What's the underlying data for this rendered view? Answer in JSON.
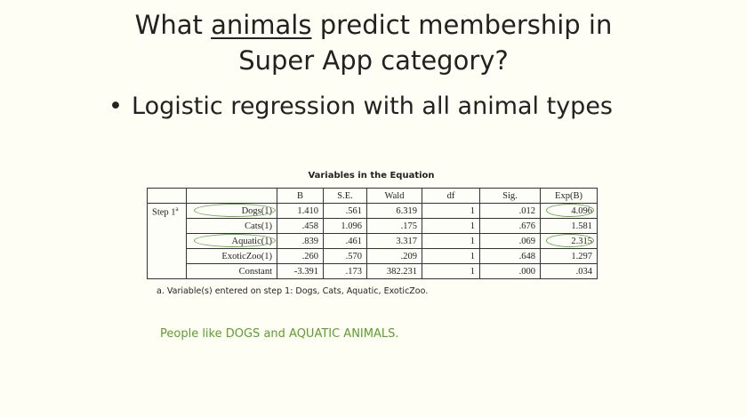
{
  "slide": {
    "title_part1": "What",
    "title_underlined": "animals",
    "title_part2": "predict membership in",
    "title_line2": "Super App category?",
    "bullet_marker": "•",
    "bullet_text": "Logistic regression with all animal types",
    "note": "People like DOGS and AQUATIC ANIMALS."
  },
  "table": {
    "caption": "Variables in the Equation",
    "step_label": "Step 1",
    "step_superscript": "a",
    "headers": [
      "B",
      "S.E.",
      "Wald",
      "df",
      "Sig.",
      "Exp(B)"
    ],
    "rows": [
      {
        "label": "Dogs(1)",
        "B": "1.410",
        "SE": ".561",
        "Wald": "6.319",
        "df": "1",
        "Sig": ".012",
        "ExpB": "4.096"
      },
      {
        "label": "Cats(1)",
        "B": ".458",
        "SE": "1.096",
        "Wald": ".175",
        "df": "1",
        "Sig": ".676",
        "ExpB": "1.581"
      },
      {
        "label": "Aquatic(1)",
        "B": ".839",
        "SE": ".461",
        "Wald": "3.317",
        "df": "1",
        "Sig": ".069",
        "ExpB": "2.315"
      },
      {
        "label": "ExoticZoo(1)",
        "B": ".260",
        "SE": ".570",
        "Wald": ".209",
        "df": "1",
        "Sig": ".648",
        "ExpB": "1.297"
      },
      {
        "label": "Constant",
        "B": "-3.391",
        "SE": ".173",
        "Wald": "382.231",
        "df": "1",
        "Sig": ".000",
        "ExpB": ".034"
      }
    ],
    "footnote": "a. Variable(s) entered on step 1: Dogs, Cats, Aquatic, ExoticZoo."
  },
  "colors": {
    "background": "#fefef4",
    "highlight": "#6aa84f",
    "note_text": "#5aa02c"
  }
}
